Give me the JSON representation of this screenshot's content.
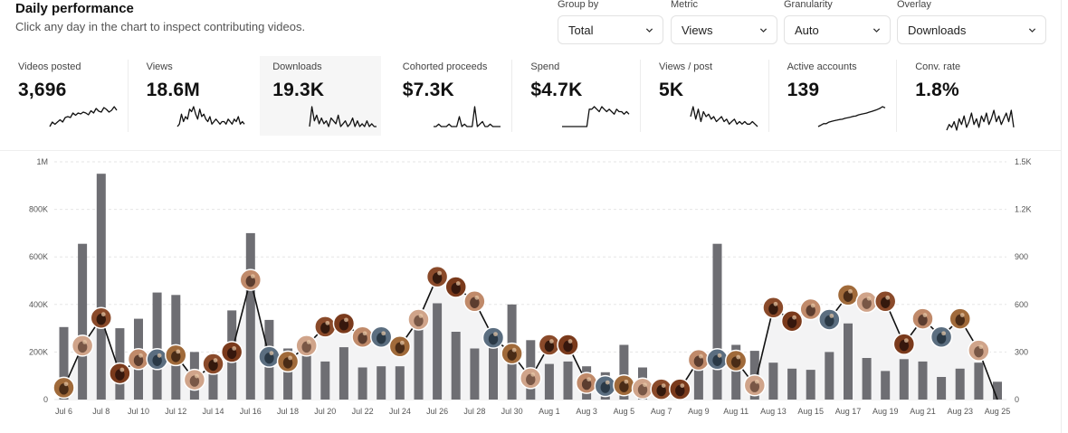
{
  "header": {
    "title": "Daily performance",
    "subtitle": "Click any day in the chart to inspect contributing videos."
  },
  "controls": [
    {
      "label": "Group by",
      "value": "Total"
    },
    {
      "label": "Metric",
      "value": "Views"
    },
    {
      "label": "Granularity",
      "value": "Auto"
    },
    {
      "label": "Overlay",
      "value": "Downloads"
    }
  ],
  "kpis": [
    {
      "label": "Videos posted",
      "value": "3,696",
      "spark": [
        2,
        3,
        2.5,
        3,
        3.5,
        3,
        4,
        4.2,
        4,
        5,
        4.5,
        5,
        4.8,
        5.2,
        5,
        4.6,
        5.5,
        5,
        6,
        5.4,
        5.2,
        6.2,
        5.8,
        5.2,
        5.6,
        6.4,
        5.6
      ]
    },
    {
      "label": "Views",
      "value": "18.6M",
      "spark": [
        1,
        2,
        6,
        3,
        5,
        4,
        8,
        7,
        9,
        6,
        4,
        8,
        5,
        6,
        4,
        3,
        5,
        2,
        3,
        4,
        3,
        2,
        3,
        3,
        2,
        4,
        3,
        2,
        4,
        3,
        5,
        2,
        3,
        2
      ]
    },
    {
      "label": "Downloads",
      "value": "19.3K",
      "spark": [
        2,
        9,
        4,
        6,
        3,
        5,
        3,
        4,
        2,
        5,
        4,
        3,
        6,
        2,
        3,
        4,
        2,
        3,
        5,
        2,
        4,
        2,
        3,
        2,
        4,
        2,
        3,
        2,
        2
      ]
    },
    {
      "label": "Cohorted proceeds",
      "value": "$7.3K",
      "spark": [
        1,
        1,
        2,
        1,
        1,
        1,
        2,
        1,
        1,
        1,
        5,
        1,
        2,
        1,
        1,
        1,
        9,
        1,
        2,
        3,
        1,
        1,
        2,
        1,
        1,
        1,
        1
      ]
    },
    {
      "label": "Spend",
      "value": "$4.7K",
      "spark": [
        0,
        0,
        0,
        0,
        0,
        0,
        0,
        0,
        0,
        0,
        0,
        7,
        7,
        8,
        7,
        6,
        8,
        7,
        6,
        7,
        6,
        5,
        7,
        6,
        6,
        5,
        6,
        5
      ]
    },
    {
      "label": "Views / post",
      "value": "5K",
      "spark": [
        5,
        9,
        4,
        8,
        3,
        7,
        5,
        6,
        4,
        5,
        3,
        4,
        5,
        3,
        4,
        2,
        3,
        4,
        2,
        3,
        2,
        3,
        2,
        2,
        3,
        2,
        1
      ]
    },
    {
      "label": "Active accounts",
      "value": "139",
      "spark": [
        1,
        1.5,
        2,
        2,
        2.5,
        2.8,
        3,
        3.2,
        3.4,
        3.5,
        3.8,
        4,
        4.2,
        4.5,
        4.6,
        5,
        5.2,
        5.4,
        5.6,
        5.9,
        6.2,
        6.5,
        6.8,
        7.2,
        7.8,
        7.4
      ]
    },
    {
      "label": "Conv. rate",
      "value": "1.8%",
      "spark": [
        2,
        4,
        3,
        5,
        2,
        6,
        4,
        7,
        3,
        5,
        8,
        4,
        6,
        3,
        7,
        5,
        8,
        4,
        6,
        9,
        5,
        7,
        4,
        6,
        8,
        5,
        9,
        3
      ]
    }
  ],
  "chart_data": {
    "type": "bar",
    "x": [
      "Jul 6",
      "Jul 7",
      "Jul 8",
      "Jul 9",
      "Jul 10",
      "Jul 11",
      "Jul 12",
      "Jul 13",
      "Jul 14",
      "Jul 15",
      "Jul 16",
      "Jul 17",
      "Jul 18",
      "Jul 19",
      "Jul 20",
      "Jul 21",
      "Jul 22",
      "Jul 23",
      "Jul 24",
      "Jul 25",
      "Jul 26",
      "Jul 27",
      "Jul 28",
      "Jul 29",
      "Jul 30",
      "Jul 31",
      "Aug 1",
      "Aug 2",
      "Aug 3",
      "Aug 4",
      "Aug 5",
      "Aug 6",
      "Aug 7",
      "Aug 8",
      "Aug 9",
      "Aug 10",
      "Aug 11",
      "Aug 12",
      "Aug 13",
      "Aug 14",
      "Aug 15",
      "Aug 16",
      "Aug 17",
      "Aug 18",
      "Aug 19",
      "Aug 20",
      "Aug 21",
      "Aug 22",
      "Aug 23",
      "Aug 24",
      "Aug 25"
    ],
    "x_tick_labels": [
      "Jul 6",
      "Jul 8",
      "Jul 10",
      "Jul 12",
      "Jul 14",
      "Jul 16",
      "Jul 18",
      "Jul 20",
      "Jul 22",
      "Jul 24",
      "Jul 26",
      "Jul 28",
      "Jul 30",
      "Aug 1",
      "Aug 3",
      "Aug 5",
      "Aug 7",
      "Aug 9",
      "Aug 11",
      "Aug 13",
      "Aug 15",
      "Aug 17",
      "Aug 19",
      "Aug 21",
      "Aug 23",
      "Aug 25"
    ],
    "series": [
      {
        "values": [
          305000,
          655000,
          950000,
          300000,
          340000,
          450000,
          440000,
          200000,
          180000,
          375000,
          700000,
          335000,
          215000,
          200000,
          160000,
          220000,
          135000,
          140000,
          140000,
          325000,
          405000,
          285000,
          215000,
          240000,
          400000,
          250000,
          150000,
          160000,
          140000,
          115000,
          230000,
          135000,
          85000,
          50000,
          160000,
          655000,
          230000,
          205000,
          155000,
          130000,
          125000,
          200000,
          320000,
          175000,
          120000,
          170000,
          160000,
          95000,
          130000,
          155000,
          75000
        ],
        "axis": "left"
      },
      {
        "values": [
          75,
          340,
          515,
          165,
          255,
          255,
          280,
          125,
          225,
          300,
          755,
          270,
          240,
          340,
          460,
          480,
          395,
          395,
          335,
          505,
          775,
          710,
          620,
          390,
          290,
          135,
          345,
          345,
          105,
          85,
          90,
          70,
          65,
          65,
          250,
          255,
          245,
          90,
          580,
          495,
          570,
          505,
          660,
          615,
          620,
          350,
          510,
          395,
          510,
          310,
          0
        ],
        "axis": "right"
      }
    ],
    "ylim_left": [
      0,
      1000000
    ],
    "ylim_right": [
      0,
      1500
    ],
    "y_ticks_left": [
      "0",
      "200K",
      "400K",
      "600K",
      "800K",
      "1M"
    ],
    "y_ticks_right": [
      "0",
      "300",
      "600",
      "900",
      "1.2K",
      "1.5K"
    ],
    "colors": {
      "bar": "#6e6e73",
      "line": "#111111",
      "grid": "#e5e5e5",
      "area": "#f3f3f4"
    },
    "grid": true
  }
}
